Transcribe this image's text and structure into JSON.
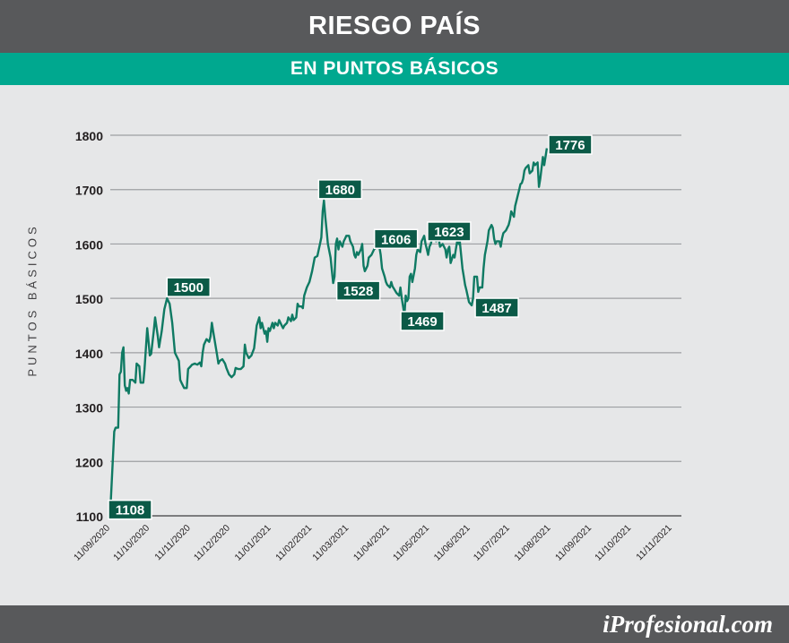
{
  "header": {
    "title": "RIESGO PAÍS",
    "subtitle": "EN PUNTOS BÁSICOS"
  },
  "footer": {
    "brand": "iProfesional.com"
  },
  "colors": {
    "line": "#0f7a63",
    "label_bg": "#0b5a47",
    "title_bar": "#58595b",
    "subtitle_bar": "#00a88f"
  },
  "chart_data": {
    "type": "line",
    "title": "RIESGO PAÍS",
    "subtitle": "EN PUNTOS BÁSICOS",
    "xlabel": "",
    "ylabel": "PUNTOS BÁSICOS",
    "ylim": [
      1100,
      1800
    ],
    "yticks": [
      1100,
      1200,
      1300,
      1400,
      1500,
      1600,
      1700,
      1800
    ],
    "grid": true,
    "x_start": "11/09/2020",
    "x_end": "18/11/2021",
    "x_ticks": [
      {
        "date": "11/09/2020",
        "label": "11/09/2020"
      },
      {
        "date": "11/10/2020",
        "label": "11/10/2020"
      },
      {
        "date": "11/11/2020",
        "label": "11/11/2020"
      },
      {
        "date": "11/12/2020",
        "label": "11/12/2020"
      },
      {
        "date": "11/01/2021",
        "label": "11/01/2021"
      },
      {
        "date": "11/02/2021",
        "label": "11/02/2021"
      },
      {
        "date": "11/03/2021",
        "label": "11/03/2021"
      },
      {
        "date": "11/04/2021",
        "label": "11/04/2021"
      },
      {
        "date": "11/05/2021",
        "label": "11/05/2021"
      },
      {
        "date": "11/06/2021",
        "label": "11/06/2021"
      },
      {
        "date": "11/07/2021",
        "label": "11/07/2021"
      },
      {
        "date": "11/08/2021",
        "label": "11/08/2021"
      },
      {
        "date": "11/09/2021",
        "label": "11/09/2021"
      },
      {
        "date": "11/10/2021",
        "label": "11/10/2021"
      },
      {
        "date": "11/11/2021",
        "label": "11/11/2021"
      }
    ],
    "series": [
      {
        "name": "",
        "points": [
          [
            "11/09/2020",
            1108
          ],
          [
            "14/09/2020",
            1255
          ],
          [
            "15/09/2020",
            1262
          ],
          [
            "17/09/2020",
            1262
          ],
          [
            "18/09/2020",
            1360
          ],
          [
            "19/09/2020",
            1365
          ],
          [
            "20/09/2020",
            1400
          ],
          [
            "21/09/2020",
            1410
          ],
          [
            "22/09/2020",
            1340
          ],
          [
            "23/09/2020",
            1330
          ],
          [
            "24/09/2020",
            1335
          ],
          [
            "25/09/2020",
            1325
          ],
          [
            "26/09/2020",
            1350
          ],
          [
            "28/09/2020",
            1350
          ],
          [
            "30/09/2020",
            1345
          ],
          [
            "01/10/2020",
            1380
          ],
          [
            "03/10/2020",
            1375
          ],
          [
            "04/10/2020",
            1345
          ],
          [
            "06/10/2020",
            1345
          ],
          [
            "07/10/2020",
            1370
          ],
          [
            "09/10/2020",
            1445
          ],
          [
            "10/10/2020",
            1420
          ],
          [
            "11/10/2020",
            1395
          ],
          [
            "12/10/2020",
            1398
          ],
          [
            "14/10/2020",
            1440
          ],
          [
            "15/10/2020",
            1465
          ],
          [
            "17/10/2020",
            1430
          ],
          [
            "18/10/2020",
            1410
          ],
          [
            "20/10/2020",
            1440
          ],
          [
            "22/10/2020",
            1480
          ],
          [
            "24/10/2020",
            1500
          ],
          [
            "26/10/2020",
            1490
          ],
          [
            "28/10/2020",
            1455
          ],
          [
            "30/10/2020",
            1400
          ],
          [
            "01/11/2020",
            1390
          ],
          [
            "02/11/2020",
            1385
          ],
          [
            "03/11/2020",
            1350
          ],
          [
            "04/11/2020",
            1345
          ],
          [
            "05/11/2020",
            1340
          ],
          [
            "06/11/2020",
            1335
          ],
          [
            "08/11/2020",
            1335
          ],
          [
            "09/11/2020",
            1370
          ],
          [
            "11/11/2020",
            1375
          ],
          [
            "12/11/2020",
            1378
          ],
          [
            "14/11/2020",
            1380
          ],
          [
            "16/11/2020",
            1378
          ],
          [
            "18/11/2020",
            1382
          ],
          [
            "19/11/2020",
            1375
          ],
          [
            "20/11/2020",
            1400
          ],
          [
            "21/11/2020",
            1415
          ],
          [
            "23/11/2020",
            1425
          ],
          [
            "25/11/2020",
            1420
          ],
          [
            "26/11/2020",
            1430
          ],
          [
            "27/11/2020",
            1455
          ],
          [
            "28/11/2020",
            1440
          ],
          [
            "30/11/2020",
            1410
          ],
          [
            "01/12/2020",
            1395
          ],
          [
            "02/12/2020",
            1380
          ],
          [
            "03/12/2020",
            1385
          ],
          [
            "05/12/2020",
            1388
          ],
          [
            "07/12/2020",
            1380
          ],
          [
            "08/12/2020",
            1372
          ],
          [
            "10/12/2020",
            1360
          ],
          [
            "12/12/2020",
            1355
          ],
          [
            "14/12/2020",
            1360
          ],
          [
            "15/12/2020",
            1372
          ],
          [
            "17/12/2020",
            1370
          ],
          [
            "19/12/2020",
            1370
          ],
          [
            "21/12/2020",
            1375
          ],
          [
            "22/12/2020",
            1415
          ],
          [
            "23/12/2020",
            1400
          ],
          [
            "25/12/2020",
            1390
          ],
          [
            "27/12/2020",
            1395
          ],
          [
            "29/12/2020",
            1408
          ],
          [
            "31/12/2020",
            1450
          ],
          [
            "02/01/2021",
            1465
          ],
          [
            "03/01/2021",
            1445
          ],
          [
            "04/01/2021",
            1455
          ],
          [
            "06/01/2021",
            1435
          ],
          [
            "07/01/2021",
            1440
          ],
          [
            "08/01/2021",
            1420
          ],
          [
            "09/01/2021",
            1445
          ],
          [
            "10/01/2021",
            1440
          ],
          [
            "12/01/2021",
            1455
          ],
          [
            "13/01/2021",
            1445
          ],
          [
            "14/01/2021",
            1455
          ],
          [
            "16/01/2021",
            1450
          ],
          [
            "17/01/2021",
            1460
          ],
          [
            "19/01/2021",
            1450
          ],
          [
            "20/01/2021",
            1445
          ],
          [
            "21/01/2021",
            1450
          ],
          [
            "23/01/2021",
            1455
          ],
          [
            "24/01/2021",
            1465
          ],
          [
            "26/01/2021",
            1458
          ],
          [
            "27/01/2021",
            1470
          ],
          [
            "28/01/2021",
            1460
          ],
          [
            "30/01/2021",
            1465
          ],
          [
            "31/01/2021",
            1490
          ],
          [
            "01/02/2021",
            1485
          ],
          [
            "03/02/2021",
            1485
          ],
          [
            "04/02/2021",
            1482
          ],
          [
            "05/02/2021",
            1505
          ],
          [
            "07/02/2021",
            1520
          ],
          [
            "09/02/2021",
            1530
          ],
          [
            "11/02/2021",
            1550
          ],
          [
            "13/02/2021",
            1575
          ],
          [
            "15/02/2021",
            1578
          ],
          [
            "17/02/2021",
            1600
          ],
          [
            "18/02/2021",
            1612
          ],
          [
            "19/02/2021",
            1660
          ],
          [
            "20/02/2021",
            1680
          ],
          [
            "21/02/2021",
            1650
          ],
          [
            "22/02/2021",
            1625
          ],
          [
            "23/02/2021",
            1600
          ],
          [
            "25/02/2021",
            1575
          ],
          [
            "26/02/2021",
            1550
          ],
          [
            "27/02/2021",
            1528
          ],
          [
            "28/02/2021",
            1540
          ],
          [
            "01/03/2021",
            1600
          ],
          [
            "02/03/2021",
            1610
          ],
          [
            "03/03/2021",
            1590
          ],
          [
            "04/03/2021",
            1605
          ],
          [
            "05/03/2021",
            1600
          ],
          [
            "06/03/2021",
            1595
          ],
          [
            "07/03/2021",
            1605
          ],
          [
            "08/03/2021",
            1610
          ],
          [
            "09/03/2021",
            1615
          ],
          [
            "11/03/2021",
            1615
          ],
          [
            "12/03/2021",
            1605
          ],
          [
            "13/03/2021",
            1600
          ],
          [
            "14/03/2021",
            1595
          ],
          [
            "15/03/2021",
            1580
          ],
          [
            "16/03/2021",
            1575
          ],
          [
            "17/03/2021",
            1585
          ],
          [
            "18/03/2021",
            1580
          ],
          [
            "20/03/2021",
            1590
          ],
          [
            "21/03/2021",
            1600
          ],
          [
            "22/03/2021",
            1560
          ],
          [
            "23/03/2021",
            1550
          ],
          [
            "24/03/2021",
            1555
          ],
          [
            "25/03/2021",
            1560
          ],
          [
            "26/03/2021",
            1575
          ],
          [
            "28/03/2021",
            1580
          ],
          [
            "29/03/2021",
            1585
          ],
          [
            "30/03/2021",
            1590
          ],
          [
            "01/04/2021",
            1595
          ],
          [
            "02/04/2021",
            1606
          ],
          [
            "03/04/2021",
            1595
          ],
          [
            "04/04/2021",
            1580
          ],
          [
            "05/04/2021",
            1555
          ],
          [
            "07/04/2021",
            1540
          ],
          [
            "08/04/2021",
            1530
          ],
          [
            "09/04/2021",
            1525
          ],
          [
            "11/04/2021",
            1520
          ],
          [
            "12/04/2021",
            1530
          ],
          [
            "13/04/2021",
            1522
          ],
          [
            "14/04/2021",
            1518
          ],
          [
            "16/04/2021",
            1510
          ],
          [
            "18/04/2021",
            1505
          ],
          [
            "19/04/2021",
            1520
          ],
          [
            "20/04/2021",
            1500
          ],
          [
            "22/04/2021",
            1469
          ],
          [
            "23/04/2021",
            1505
          ],
          [
            "24/04/2021",
            1495
          ],
          [
            "25/04/2021",
            1500
          ],
          [
            "26/04/2021",
            1540
          ],
          [
            "27/04/2021",
            1545
          ],
          [
            "28/04/2021",
            1530
          ],
          [
            "30/04/2021",
            1555
          ],
          [
            "01/05/2021",
            1580
          ],
          [
            "02/05/2021",
            1590
          ],
          [
            "04/05/2021",
            1585
          ],
          [
            "05/05/2021",
            1605
          ],
          [
            "06/05/2021",
            1610
          ],
          [
            "07/05/2021",
            1615
          ],
          [
            "08/05/2021",
            1600
          ],
          [
            "09/05/2021",
            1590
          ],
          [
            "10/05/2021",
            1580
          ],
          [
            "11/05/2021",
            1595
          ],
          [
            "12/05/2021",
            1600
          ],
          [
            "13/05/2021",
            1612
          ],
          [
            "15/05/2021",
            1623
          ],
          [
            "16/05/2021",
            1605
          ],
          [
            "18/05/2021",
            1610
          ],
          [
            "19/05/2021",
            1595
          ],
          [
            "21/05/2021",
            1600
          ],
          [
            "23/05/2021",
            1590
          ],
          [
            "24/05/2021",
            1575
          ],
          [
            "25/05/2021",
            1590
          ],
          [
            "26/05/2021",
            1595
          ],
          [
            "27/05/2021",
            1565
          ],
          [
            "29/05/2021",
            1580
          ],
          [
            "30/05/2021",
            1575
          ],
          [
            "31/05/2021",
            1590
          ],
          [
            "01/06/2021",
            1605
          ],
          [
            "02/06/2021",
            1600
          ],
          [
            "03/06/2021",
            1605
          ],
          [
            "04/06/2021",
            1580
          ],
          [
            "05/06/2021",
            1555
          ],
          [
            "06/06/2021",
            1540
          ],
          [
            "07/06/2021",
            1525
          ],
          [
            "08/06/2021",
            1515
          ],
          [
            "10/06/2021",
            1493
          ],
          [
            "12/06/2021",
            1487
          ],
          [
            "13/06/2021",
            1500
          ],
          [
            "14/06/2021",
            1540
          ],
          [
            "16/06/2021",
            1540
          ],
          [
            "17/06/2021",
            1512
          ],
          [
            "18/06/2021",
            1520
          ],
          [
            "20/06/2021",
            1520
          ],
          [
            "21/06/2021",
            1555
          ],
          [
            "22/06/2021",
            1580
          ],
          [
            "24/06/2021",
            1605
          ],
          [
            "25/06/2021",
            1625
          ],
          [
            "27/06/2021",
            1635
          ],
          [
            "28/06/2021",
            1630
          ],
          [
            "29/06/2021",
            1610
          ],
          [
            "30/06/2021",
            1600
          ],
          [
            "01/07/2021",
            1605
          ],
          [
            "03/07/2021",
            1605
          ],
          [
            "04/07/2021",
            1595
          ],
          [
            "05/07/2021",
            1610
          ],
          [
            "06/07/2021",
            1620
          ],
          [
            "08/07/2021",
            1625
          ],
          [
            "09/07/2021",
            1630
          ],
          [
            "10/07/2021",
            1635
          ],
          [
            "11/07/2021",
            1645
          ],
          [
            "12/07/2021",
            1660
          ],
          [
            "13/07/2021",
            1655
          ],
          [
            "14/07/2021",
            1650
          ],
          [
            "15/07/2021",
            1670
          ],
          [
            "16/07/2021",
            1680
          ],
          [
            "18/07/2021",
            1700
          ],
          [
            "19/07/2021",
            1710
          ],
          [
            "20/07/2021",
            1712
          ],
          [
            "21/07/2021",
            1720
          ],
          [
            "22/07/2021",
            1735
          ],
          [
            "23/07/2021",
            1740
          ],
          [
            "25/07/2021",
            1745
          ],
          [
            "26/07/2021",
            1730
          ],
          [
            "28/07/2021",
            1735
          ],
          [
            "29/07/2021",
            1750
          ],
          [
            "30/07/2021",
            1745
          ],
          [
            "01/08/2021",
            1750
          ],
          [
            "02/08/2021",
            1705
          ],
          [
            "03/08/2021",
            1720
          ],
          [
            "05/08/2021",
            1760
          ],
          [
            "06/08/2021",
            1745
          ],
          [
            "08/08/2021",
            1776
          ]
        ]
      }
    ],
    "annotations": [
      {
        "date": "11/09/2020",
        "value": 1108,
        "label": "1108"
      },
      {
        "date": "24/10/2020",
        "value": 1500,
        "label": "1500"
      },
      {
        "date": "20/02/2021",
        "value": 1680,
        "label": "1680"
      },
      {
        "date": "27/02/2021",
        "value": 1528,
        "label": "1528"
      },
      {
        "date": "02/04/2021",
        "value": 1606,
        "label": "1606"
      },
      {
        "date": "22/04/2021",
        "value": 1469,
        "label": "1469"
      },
      {
        "date": "15/05/2021",
        "value": 1623,
        "label": "1623"
      },
      {
        "date": "12/06/2021",
        "value": 1487,
        "label": "1487"
      },
      {
        "date": "08/08/2021",
        "value": 1776,
        "label": "1776"
      }
    ]
  }
}
